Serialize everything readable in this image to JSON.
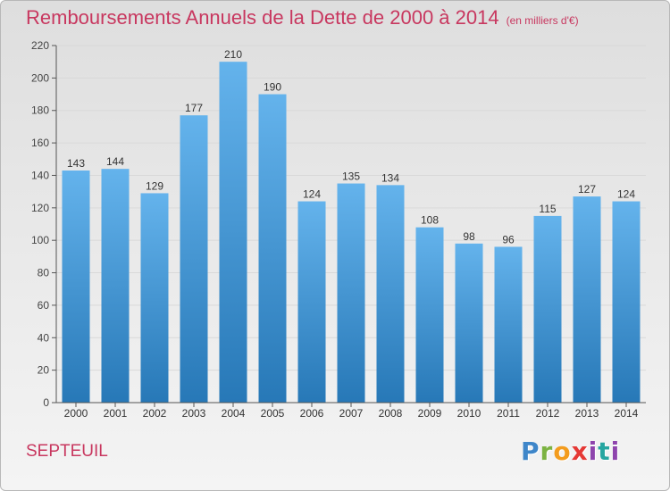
{
  "header": {
    "title": "Remboursements Annuels de la Dette de 2000 à 2014",
    "subtitle": "(en milliers d'€)"
  },
  "footer": {
    "commune": "SEPTEUIL",
    "logo_text": "Proxiti"
  },
  "colors": {
    "title": "#c8375f",
    "bar_light": "#64b3ec",
    "bar_dark": "#2778b7",
    "grid": "#d9d9d9",
    "axis": "#555555"
  },
  "chart_data": {
    "type": "bar",
    "title": "Remboursements Annuels de la Dette de 2000 à 2014",
    "xlabel": "",
    "ylabel": "",
    "categories": [
      "2000",
      "2001",
      "2002",
      "2003",
      "2004",
      "2005",
      "2006",
      "2007",
      "2008",
      "2009",
      "2010",
      "2011",
      "2012",
      "2013",
      "2014"
    ],
    "values": [
      143,
      144,
      129,
      177,
      210,
      190,
      124,
      135,
      134,
      108,
      98,
      96,
      115,
      127,
      124
    ],
    "ylim": [
      0,
      220
    ],
    "yticks": [
      0,
      20,
      40,
      60,
      80,
      100,
      120,
      140,
      160,
      180,
      200,
      220
    ],
    "grid": true,
    "legend": "none"
  }
}
